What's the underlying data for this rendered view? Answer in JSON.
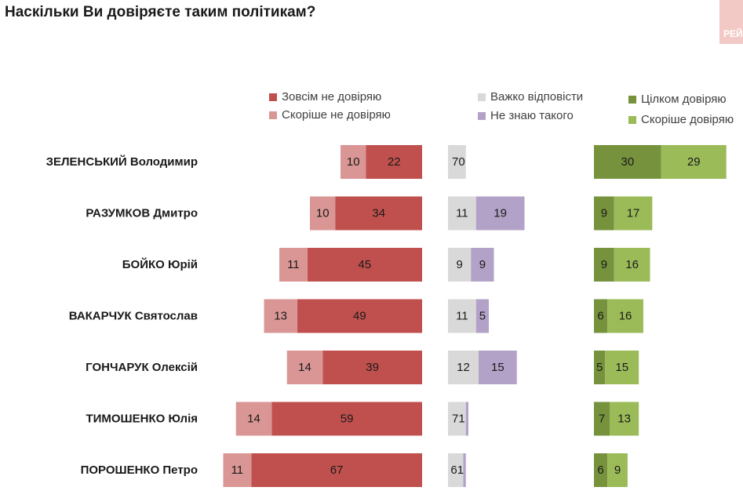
{
  "title": "Наскільки Ви довіряєте таким політикам?",
  "logo_text": "РЕЙ",
  "colors": {
    "total_distrust": "#c0504d",
    "rather_distrust": "#d99694",
    "hard_to_say": "#d9d9d9",
    "dont_know": "#b3a2c7",
    "fully_trust": "#76923c",
    "rather_trust": "#9bbb59"
  },
  "legend": {
    "total_distrust": "Зовсім не довіряю",
    "rather_distrust": "Скоріше не довіряю",
    "hard_to_say": "Важко відповісти",
    "dont_know": "Не знаю такого",
    "fully_trust": "Цілком довіряю",
    "rather_trust": "Скоріше довіряю"
  },
  "chart_data": {
    "type": "bar",
    "orientation": "horizontal",
    "stacked": true,
    "unit": "%",
    "categories": [
      "ЗЕЛЕНСЬКИЙ Володимир",
      "РАЗУМКОВ Дмитро",
      "БОЙКО Юрій",
      "ВАКАРЧУК Святослав",
      "ГОНЧАРУК Олексій",
      "ТИМОШЕНКО Юлія",
      "ПОРОШЕНКО Петро"
    ],
    "series": [
      {
        "name": "Зовсім не довіряю",
        "key": "total_distrust",
        "values": [
          22,
          34,
          45,
          49,
          39,
          59,
          67
        ]
      },
      {
        "name": "Скоріше не довіряю",
        "key": "rather_distrust",
        "values": [
          10,
          10,
          11,
          13,
          14,
          14,
          11
        ]
      },
      {
        "name": "Важко відповісти",
        "key": "hard_to_say",
        "values": [
          7,
          11,
          9,
          11,
          12,
          7,
          6
        ]
      },
      {
        "name": "Не знаю такого",
        "key": "dont_know",
        "values": [
          0,
          19,
          9,
          5,
          15,
          1,
          1
        ]
      },
      {
        "name": "Цілком довіряю",
        "key": "fully_trust",
        "values": [
          30,
          9,
          9,
          6,
          5,
          7,
          6
        ]
      },
      {
        "name": "Скоріше довіряю",
        "key": "rather_trust",
        "values": [
          29,
          17,
          16,
          16,
          15,
          13,
          9
        ]
      }
    ],
    "legend_position": "top",
    "grid": false
  }
}
